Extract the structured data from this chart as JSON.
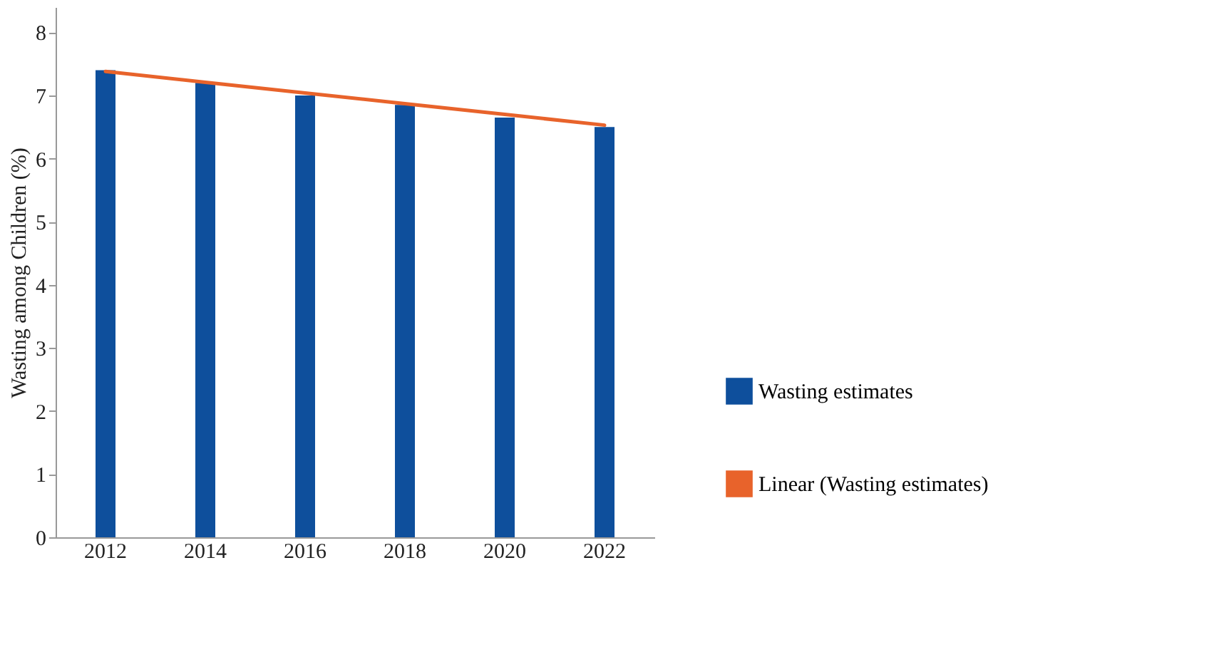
{
  "chart_data": {
    "type": "bar",
    "ylabel": "Wasting among Children (%)",
    "categories": [
      "2012",
      "2014",
      "2016",
      "2018",
      "2020",
      "2022"
    ],
    "series": [
      {
        "name": "Wasting estimates",
        "color": "#0e4f9c",
        "values": [
          7.4,
          7.2,
          7.0,
          6.85,
          6.65,
          6.5
        ]
      },
      {
        "name": "Linear (Wasting estimates)",
        "type": "line",
        "color": "#e8632b",
        "values": [
          7.38,
          7.21,
          7.04,
          6.87,
          6.7,
          6.53
        ]
      }
    ],
    "ylim": [
      0,
      8.4
    ],
    "yticks": [
      0,
      1,
      2,
      3,
      4,
      5,
      6,
      7,
      8
    ],
    "grid": false,
    "legend": "right"
  }
}
